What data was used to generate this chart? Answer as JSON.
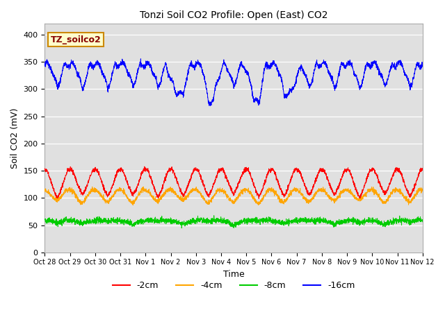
{
  "title": "Tonzi Soil CO2 Profile: Open (East) CO2",
  "ylabel": "Soil CO2 (mV)",
  "xlabel": "Time",
  "annotation": "TZ_soilco2",
  "ylim": [
    0,
    420
  ],
  "yticks": [
    0,
    50,
    100,
    150,
    200,
    250,
    300,
    350,
    400
  ],
  "xtick_labels": [
    "Oct 28",
    "Oct 29",
    "Oct 30",
    "Oct 31",
    "Nov 1",
    "Nov 2",
    "Nov 3",
    "Nov 4",
    "Nov 5",
    "Nov 6",
    "Nov 7",
    "Nov 8",
    "Nov 9",
    "Nov 10",
    "Nov 11",
    "Nov 12"
  ],
  "bg_color": "#e0e0e0",
  "line_colors": {
    "2cm": "#ff0000",
    "4cm": "#ffa500",
    "8cm": "#00cc00",
    "16cm": "#0000ff"
  },
  "n_points": 2880,
  "annotation_bg": "#ffffcc",
  "annotation_border": "#cc8800",
  "annotation_text_color": "#880000"
}
